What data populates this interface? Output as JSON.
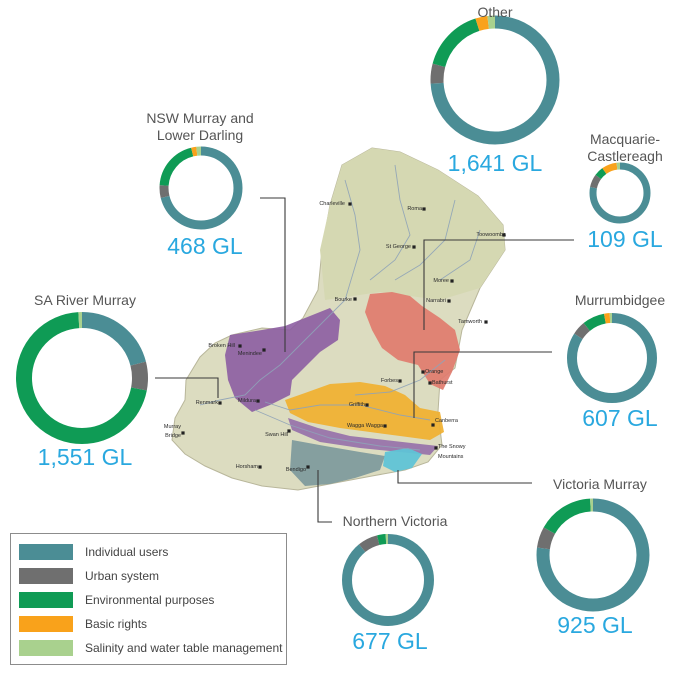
{
  "colors": {
    "individual": "#4b8d95",
    "urban": "#6f6f6f",
    "environmental": "#0f9b55",
    "basic": "#f9a21b",
    "salinity": "#a9d18e",
    "total_text": "#29a8df"
  },
  "legend": [
    {
      "key": "individual",
      "label": "Individual users"
    },
    {
      "key": "urban",
      "label": "Urban system"
    },
    {
      "key": "environmental",
      "label": "Environmental purposes"
    },
    {
      "key": "basic",
      "label": "Basic rights"
    },
    {
      "key": "salinity",
      "label": "Salinity and water table management"
    }
  ],
  "chart_data": [
    {
      "type": "pie",
      "region": "Other",
      "total_label": "1,641 GL",
      "total_gl": 1641,
      "slices": {
        "individual": 0.74,
        "urban": 0.05,
        "environmental": 0.16,
        "basic": 0.03,
        "salinity": 0.02
      }
    },
    {
      "type": "pie",
      "region": "NSW Murray and Lower Darling",
      "total_label": "468 GL",
      "total_gl": 468,
      "slices": {
        "individual": 0.71,
        "urban": 0.05,
        "environmental": 0.2,
        "basic": 0.02,
        "salinity": 0.02
      }
    },
    {
      "type": "pie",
      "region": "Macquarie-Castlereagh",
      "total_label": "109 GL",
      "total_gl": 109,
      "slices": {
        "individual": 0.78,
        "urban": 0.07,
        "environmental": 0.05,
        "basic": 0.08,
        "salinity": 0.02
      }
    },
    {
      "type": "pie",
      "region": "SA River Murray",
      "total_label": "1,551 GL",
      "total_gl": 1551,
      "slices": {
        "individual": 0.21,
        "urban": 0.07,
        "environmental": 0.71,
        "basic": 0.0,
        "salinity": 0.01
      }
    },
    {
      "type": "pie",
      "region": "Murrumbidgee",
      "total_label": "607 GL",
      "total_gl": 607,
      "slices": {
        "individual": 0.84,
        "urban": 0.05,
        "environmental": 0.08,
        "basic": 0.02,
        "salinity": 0.01
      }
    },
    {
      "type": "pie",
      "region": "Victoria Murray",
      "total_label": "925 GL",
      "total_gl": 925,
      "slices": {
        "individual": 0.77,
        "urban": 0.06,
        "environmental": 0.16,
        "basic": 0.0,
        "salinity": 0.01
      }
    },
    {
      "type": "pie",
      "region": "Northern Victoria",
      "total_label": "677 GL",
      "total_gl": 677,
      "slices": {
        "individual": 0.89,
        "urban": 0.07,
        "environmental": 0.03,
        "basic": 0.0,
        "salinity": 0.01
      }
    }
  ],
  "labels": {
    "other": "Other",
    "nsw_line1": "NSW Murray and",
    "nsw_line2": "Lower Darling",
    "macq_line1": "Macquarie-",
    "macq_line2": "Castlereagh",
    "sa": "SA River Murray",
    "murrumbidgee": "Murrumbidgee",
    "vic_murray": "Victoria Murray",
    "north_vic": "Northern Victoria"
  },
  "towns": [
    {
      "id": "charleville",
      "name": "Charleville"
    },
    {
      "id": "roma",
      "name": "Roma"
    },
    {
      "id": "stgeorge",
      "name": "St George"
    },
    {
      "id": "toowoomba",
      "name": "Toowoomba"
    },
    {
      "id": "moree",
      "name": "Moree"
    },
    {
      "id": "bourke",
      "name": "Bourke"
    },
    {
      "id": "narrabri",
      "name": "Narrabri"
    },
    {
      "id": "tamworth",
      "name": "Tamworth"
    },
    {
      "id": "brokenhill",
      "name": "Broken Hill"
    },
    {
      "id": "menindee",
      "name": "Menindee"
    },
    {
      "id": "orange",
      "name": "Orange"
    },
    {
      "id": "bathurst",
      "name": "Bathurst"
    },
    {
      "id": "forbes",
      "name": "Forbes"
    },
    {
      "id": "renmark",
      "name": "Renmark"
    },
    {
      "id": "mildura",
      "name": "Mildura"
    },
    {
      "id": "griffith",
      "name": "Griffith"
    },
    {
      "id": "canberra",
      "name": "Canberra"
    },
    {
      "id": "wagga",
      "name": "Wagga Wagga"
    },
    {
      "id": "swanhill",
      "name": "Swan Hill"
    },
    {
      "id": "murraybridge1",
      "name": "Murray"
    },
    {
      "id": "murraybridge2",
      "name": "Bridge"
    },
    {
      "id": "snowy1",
      "name": "The Snowy"
    },
    {
      "id": "snowy2",
      "name": "Mountains"
    },
    {
      "id": "horsham",
      "name": "Horsham"
    },
    {
      "id": "bendigo",
      "name": "Bendigo"
    }
  ]
}
